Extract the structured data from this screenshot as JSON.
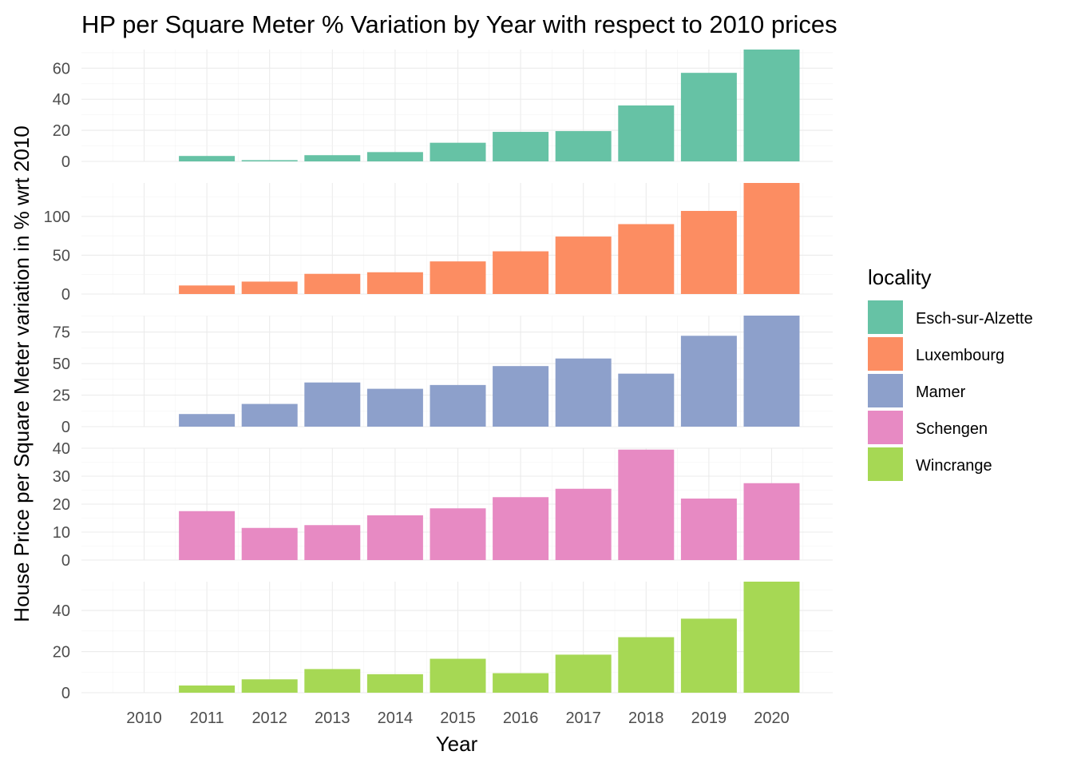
{
  "chart_data": {
    "type": "bar",
    "title": "HP per Square Meter % Variation by Year with respect to 2010 prices",
    "xlabel": "Year",
    "ylabel": "House Price per Square Meter variation in % wrt 2010",
    "categories": [
      "2010",
      "2011",
      "2012",
      "2013",
      "2014",
      "2015",
      "2016",
      "2017",
      "2018",
      "2019",
      "2020"
    ],
    "facet": "locality (stacked panels, free y scales)",
    "legend": {
      "title": "locality",
      "placement": "right"
    },
    "series": [
      {
        "name": "Esch-sur-Alzette",
        "color": "#66c2a5",
        "values": [
          0,
          3.5,
          0.8,
          4,
          6,
          12,
          19,
          19.5,
          36,
          57,
          72
        ],
        "ylim": [
          0,
          72
        ],
        "yticks": [
          0,
          20,
          40,
          60
        ]
      },
      {
        "name": "Luxembourg",
        "color": "#fc8d62",
        "values": [
          0,
          11,
          16,
          26,
          28,
          42,
          55,
          74,
          90,
          107,
          143
        ],
        "ylim": [
          0,
          143
        ],
        "yticks": [
          0,
          50,
          100
        ]
      },
      {
        "name": "Mamer",
        "color": "#8da0cb",
        "values": [
          0,
          10,
          18,
          35,
          30,
          33,
          48,
          54,
          42,
          72,
          88
        ],
        "ylim": [
          0,
          88
        ],
        "yticks": [
          0,
          25,
          50,
          75
        ]
      },
      {
        "name": "Schengen",
        "color": "#e78ac3",
        "values": [
          0,
          17.5,
          11.5,
          12.5,
          16,
          18.5,
          22.5,
          25.5,
          39.5,
          22,
          27.5
        ],
        "ylim": [
          0,
          40
        ],
        "yticks": [
          0,
          10,
          20,
          30,
          40
        ]
      },
      {
        "name": "Wincrange",
        "color": "#a6d854",
        "values": [
          0,
          3.5,
          6.5,
          11.5,
          9,
          16.5,
          9.5,
          18.5,
          27,
          36,
          54
        ],
        "ylim": [
          0,
          54
        ],
        "yticks": [
          0,
          20,
          40
        ]
      }
    ],
    "grid": true
  }
}
